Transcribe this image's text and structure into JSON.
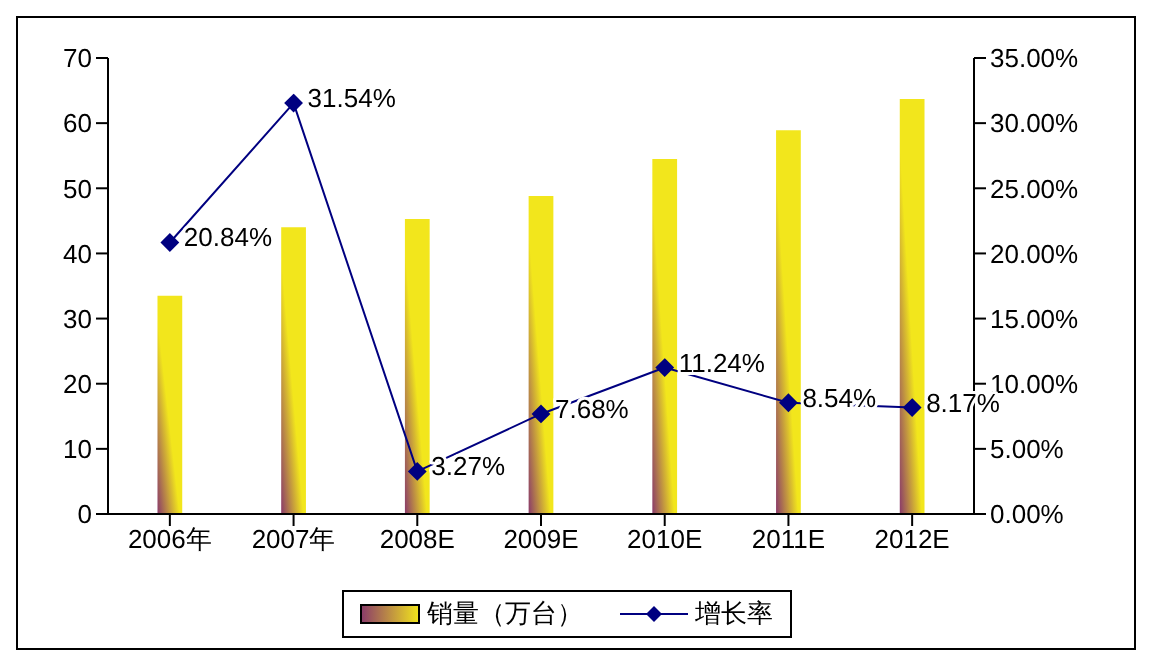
{
  "chart_data": {
    "type": "bar",
    "categories": [
      "2006年",
      "2007年",
      "2008E",
      "2009E",
      "2010E",
      "2011E",
      "2012E"
    ],
    "series": [
      {
        "name": "销量（万台）",
        "color": "#f2e61c",
        "values": [
          33.5,
          44.0,
          45.3,
          48.8,
          54.5,
          58.9,
          63.7
        ]
      },
      {
        "name": "增长率",
        "type": "line",
        "axis": "y2",
        "color": "#000080",
        "marker": "diamond",
        "values": [
          20.84,
          31.54,
          3.27,
          7.68,
          11.24,
          8.54,
          8.17
        ],
        "value_labels": [
          "20.84%",
          "31.54%",
          "3.27%",
          "7.68%",
          "11.24%",
          "8.54%",
          "8.17%"
        ]
      }
    ],
    "ylim": [
      0,
      70
    ],
    "yticks": [
      0,
      10,
      20,
      30,
      40,
      50,
      60,
      70
    ],
    "y2lim": [
      0,
      35
    ],
    "y2ticks": [
      {
        "value": 0,
        "label": "0.00%"
      },
      {
        "value": 5,
        "label": "5.00%"
      },
      {
        "value": 10,
        "label": "10.00%"
      },
      {
        "value": 15,
        "label": "15.00%"
      },
      {
        "value": 20,
        "label": "20.00%"
      },
      {
        "value": 25,
        "label": "25.00%"
      },
      {
        "value": 30,
        "label": "30.00%"
      },
      {
        "value": 35,
        "label": "35.00%"
      }
    ],
    "grid": false,
    "legend": "bottom"
  }
}
